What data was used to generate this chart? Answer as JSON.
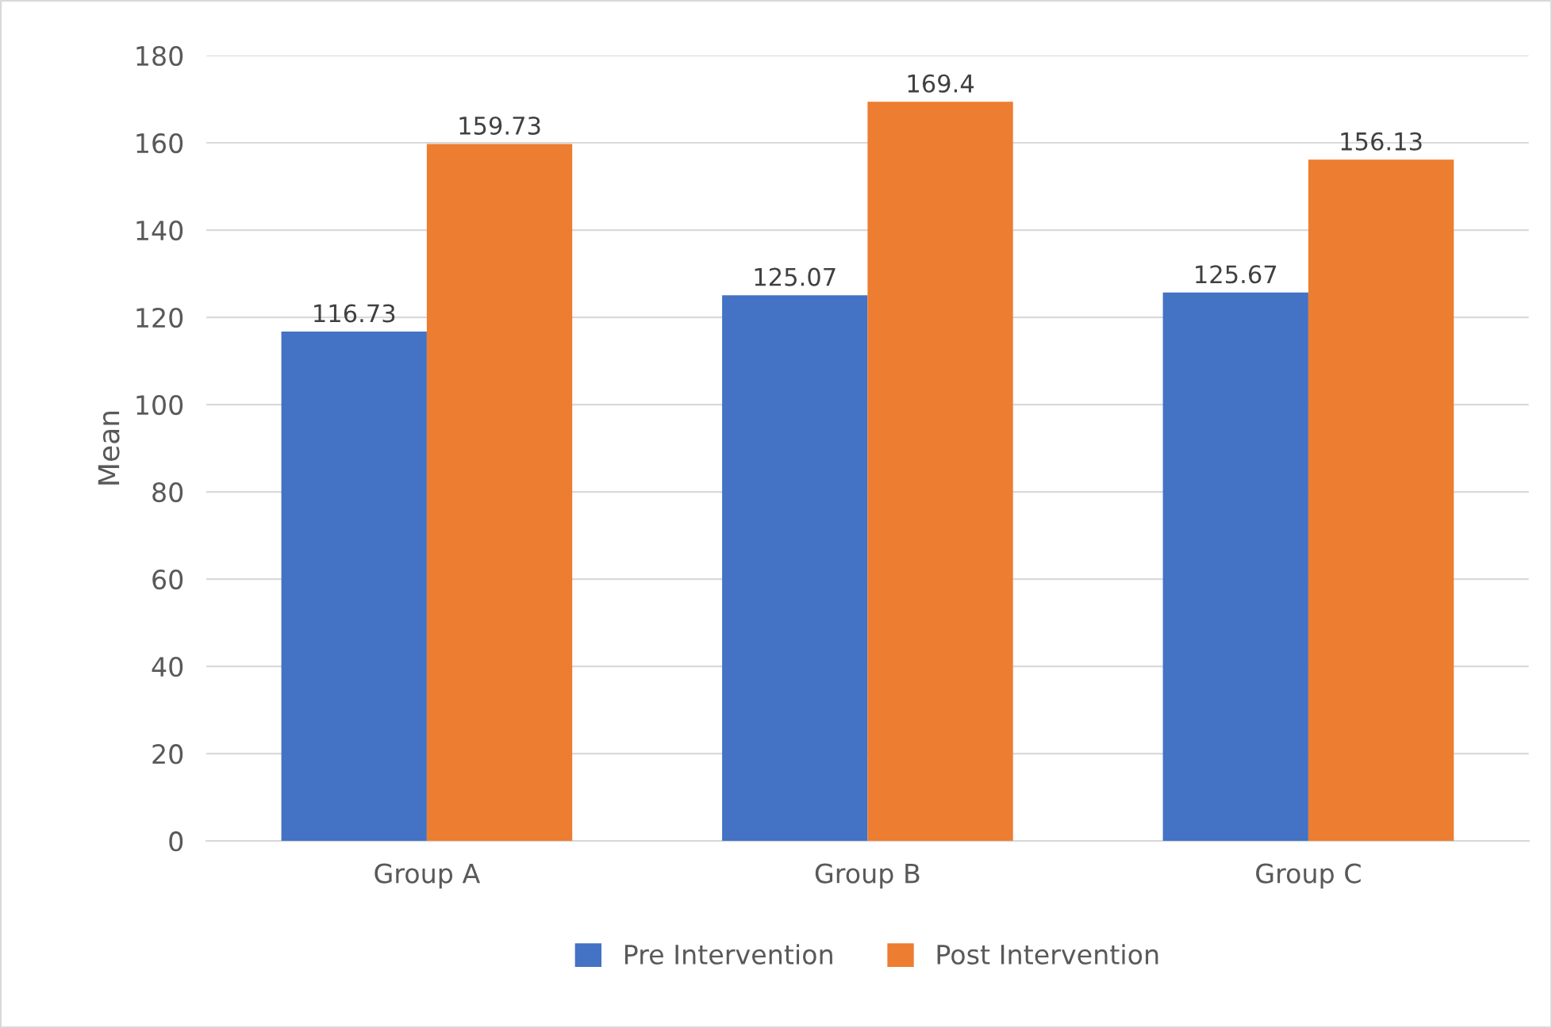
{
  "chart_data": {
    "type": "bar",
    "ylabel": "Mean",
    "categories": [
      "Group A",
      "Group B",
      "Group C"
    ],
    "series": [
      {
        "name": "Pre Intervention",
        "color": "#4472c4",
        "values": [
          116.73,
          125.07,
          125.67
        ]
      },
      {
        "name": "Post Intervention",
        "color": "#ed7d31",
        "values": [
          159.73,
          169.4,
          156.13
        ]
      }
    ],
    "ylim": [
      0,
      180
    ],
    "yticks": [
      0,
      20,
      40,
      60,
      80,
      100,
      120,
      140,
      160,
      180
    ],
    "grid": "y",
    "legend": "bottom",
    "data_labels": true
  }
}
